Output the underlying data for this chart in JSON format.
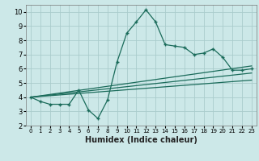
{
  "xlabel": "Humidex (Indice chaleur)",
  "bg_color": "#cce8e8",
  "grid_color": "#aacccc",
  "line_color": "#1a6b5a",
  "xlim": [
    -0.5,
    23.5
  ],
  "ylim": [
    2,
    10.5
  ],
  "xticks": [
    0,
    1,
    2,
    3,
    4,
    5,
    6,
    7,
    8,
    9,
    10,
    11,
    12,
    13,
    14,
    15,
    16,
    17,
    18,
    19,
    20,
    21,
    22,
    23
  ],
  "yticks": [
    2,
    3,
    4,
    5,
    6,
    7,
    8,
    9,
    10
  ],
  "main_x": [
    0,
    1,
    2,
    3,
    4,
    5,
    6,
    7,
    8,
    9,
    10,
    11,
    12,
    13,
    14,
    15,
    16,
    17,
    18,
    19,
    20,
    21,
    22,
    23
  ],
  "main_y": [
    4.0,
    3.7,
    3.5,
    3.5,
    3.5,
    4.5,
    3.1,
    2.5,
    3.8,
    6.5,
    8.5,
    9.3,
    10.15,
    9.3,
    7.7,
    7.6,
    7.5,
    7.0,
    7.1,
    7.4,
    6.8,
    5.9,
    5.9,
    6.0
  ],
  "line1_x": [
    0,
    23
  ],
  "line1_y": [
    4.0,
    6.2
  ],
  "line2_x": [
    0,
    23
  ],
  "line2_y": [
    4.0,
    5.7
  ],
  "line3_x": [
    0,
    23
  ],
  "line3_y": [
    4.0,
    5.2
  ]
}
